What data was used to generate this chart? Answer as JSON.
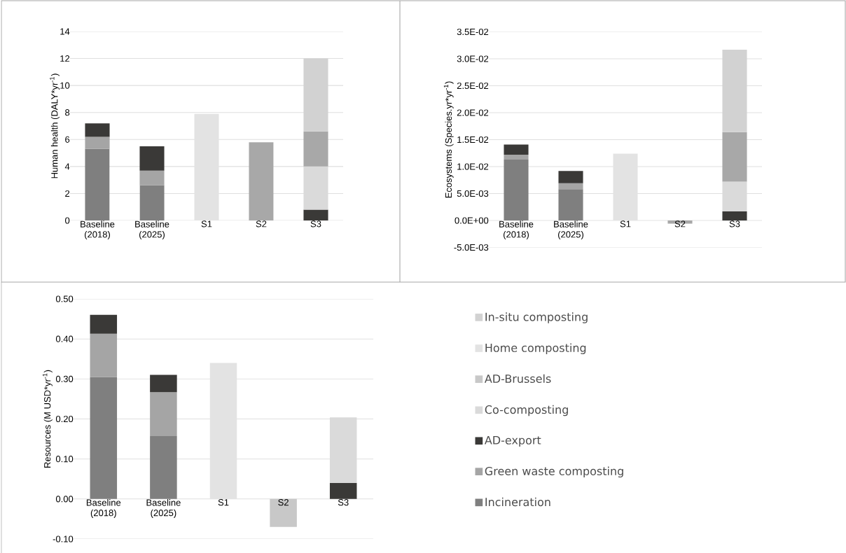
{
  "chart_data": [
    {
      "type": "bar",
      "stacked": true,
      "grid": "y",
      "ylabel": "Human health (DALY*yr$^{-1}$)",
      "categories": [
        "Baseline (2018)",
        "Baseline (2025)",
        "S1",
        "S2",
        "S3"
      ],
      "ylim": [
        0,
        14
      ],
      "yticks": [
        0,
        2,
        4,
        6,
        8,
        10,
        12,
        14
      ],
      "series": [
        {
          "color": "#7f7f7f",
          "values": [
            5.3,
            2.6,
            null,
            null,
            null
          ]
        },
        {
          "color": "#a5a5a5",
          "values": [
            0.9,
            1.1,
            null,
            null,
            null
          ]
        },
        {
          "color": "#3a3937",
          "values": [
            1.0,
            1.8,
            null,
            null,
            0.8
          ]
        },
        {
          "color": "#dadada",
          "values": [
            null,
            null,
            null,
            null,
            3.2
          ]
        },
        {
          "color": "#a8a8a8",
          "values": [
            null,
            null,
            null,
            5.8,
            2.6
          ]
        },
        {
          "color": "#e3e3e3",
          "values": [
            null,
            null,
            7.9,
            null,
            null
          ]
        },
        {
          "color": "#d2d2d2",
          "values": [
            null,
            null,
            null,
            null,
            5.4
          ]
        }
      ]
    },
    {
      "type": "bar",
      "stacked": true,
      "grid": "y",
      "ylabel": "Ecosystems (Species.yr*yr$^{-1}$)",
      "categories": [
        "Baseline (2018)",
        "Baseline (2025)",
        "S1",
        "S2",
        "S3"
      ],
      "ylim": [
        -0.005,
        0.035
      ],
      "yticks": [
        {
          "value": -0.005,
          "label": "-5.0E-03"
        },
        {
          "value": 0,
          "label": "0.0E+00"
        },
        {
          "value": 0.005,
          "label": "5.0E-03"
        },
        {
          "value": 0.01,
          "label": "1.0E-02"
        },
        {
          "value": 0.015,
          "label": "1.5E-02"
        },
        {
          "value": 0.02,
          "label": "2.0E-02"
        },
        {
          "value": 0.025,
          "label": "2.5E-02"
        },
        {
          "value": 0.03,
          "label": "3.0E-02"
        },
        {
          "value": 0.035,
          "label": "3.5E-02"
        }
      ],
      "series": [
        {
          "color": "#7f7f7f",
          "values": [
            0.0113,
            0.0058,
            null,
            null,
            null
          ]
        },
        {
          "color": "#a5a5a5",
          "values": [
            0.0009,
            0.0011,
            null,
            null,
            null
          ]
        },
        {
          "color": "#3a3937",
          "values": [
            0.0019,
            0.0023,
            null,
            null,
            0.0017
          ]
        },
        {
          "color": "#dadada",
          "values": [
            null,
            null,
            null,
            null,
            0.0055
          ]
        },
        {
          "color": "#a8a8a8",
          "values": [
            null,
            null,
            null,
            -0.0006,
            0.0092
          ]
        },
        {
          "color": "#e3e3e3",
          "values": [
            null,
            null,
            0.0124,
            null,
            null
          ]
        },
        {
          "color": "#d2d2d2",
          "values": [
            null,
            null,
            null,
            null,
            0.0153
          ]
        }
      ]
    },
    {
      "type": "bar",
      "stacked": true,
      "grid": "y",
      "ylabel": "Resources (M USD*yr$^{-1}$)",
      "legend": "right",
      "categories": [
        "Baseline (2018)",
        "Baseline (2025)",
        "S1",
        "S2",
        "S3"
      ],
      "ylim": [
        -0.1,
        0.5
      ],
      "yticks": [
        {
          "value": -0.1,
          "label": "-0.10"
        },
        {
          "value": 0,
          "label": "0.00"
        },
        {
          "value": 0.1,
          "label": "0.10"
        },
        {
          "value": 0.2,
          "label": "0.20"
        },
        {
          "value": 0.3,
          "label": "0.30"
        },
        {
          "value": 0.4,
          "label": "0.40"
        },
        {
          "value": 0.5,
          "label": "0.50"
        }
      ],
      "series": [
        {
          "name": "Incineration",
          "color": "#7f7f7f",
          "values": [
            0.305,
            0.157,
            null,
            null,
            null
          ]
        },
        {
          "name": "Green waste composting",
          "color": "#a5a5a5",
          "values": [
            0.108,
            0.11,
            null,
            null,
            null
          ]
        },
        {
          "name": "AD-export",
          "color": "#3a3937",
          "values": [
            0.047,
            0.043,
            null,
            null,
            0.04
          ]
        },
        {
          "name": "Co-composting",
          "color": "#dadada",
          "values": [
            null,
            null,
            null,
            null,
            0.164
          ]
        },
        {
          "name": "AD-Brussels",
          "color": "#c8c8c8",
          "values": [
            null,
            null,
            null,
            -0.07,
            null
          ]
        },
        {
          "name": "Home composting",
          "color": "#e3e3e3",
          "values": [
            null,
            null,
            0.34,
            null,
            null
          ]
        },
        {
          "name": "In-situ composting",
          "color": "#d2d2d2",
          "values": [
            null,
            null,
            null,
            null,
            null
          ]
        }
      ]
    }
  ]
}
